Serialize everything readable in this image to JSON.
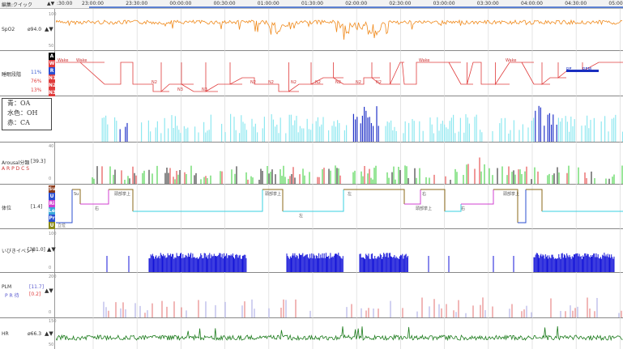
{
  "header": {
    "title": "編集:クイック",
    "arrows": "▲▼",
    "timeline_prefix": ":30:00",
    "times": [
      "23:00:00",
      "23:30:00",
      "00:00:00",
      "00:30:00",
      "01:00:00",
      "01:30:00",
      "02:00:00",
      "02:30:00",
      "03:00:00",
      "03:30:00",
      "04:00:00",
      "04:30:00",
      "05:00:00"
    ]
  },
  "rows": {
    "spo2": {
      "name": "SpO2",
      "value": "ø94.0",
      "arrows": "▲▼",
      "scale_top": "100",
      "scale_bottom": "50",
      "color": "#f08a1c"
    },
    "sleep": {
      "name": "睡眠段階",
      "pct1": "11%",
      "pct2": "76%",
      "pct3": "13%",
      "stages": [
        "A",
        "W",
        "R",
        "N1",
        "N2",
        "N3"
      ],
      "labels": [
        "Wake",
        "Wake",
        "N2",
        "N3",
        "N3",
        "N2",
        "N2",
        "N2",
        "N2",
        "N2",
        "N2",
        "N2",
        "Wake",
        "Wake",
        "RE",
        "REM"
      ],
      "color": "#e03c3c"
    },
    "apnea": {
      "legend1": "青：OA",
      "legend2": "水色：OH",
      "legend3": "赤：CA"
    },
    "arousal": {
      "name": "Arousal分類",
      "value": "[39.3]",
      "codes": "A R P D C S",
      "scale_top": "40",
      "scale_bottom": "0"
    },
    "position": {
      "name": "体位",
      "value": "[1.4]",
      "states": [
        "Su",
        "U",
        "Ri",
        "Le",
        "Pr",
        "U"
      ],
      "labels": [
        "Su",
        "右",
        "頭部挙上",
        "頭部挙上",
        "左",
        "左",
        "頭部挙上",
        "右",
        "右",
        "頭部挙上",
        "立位"
      ]
    },
    "snore": {
      "name": "いびきイベント",
      "value": "[381.0]",
      "arrows": "▲▼",
      "scale_top": "100",
      "scale_bottom": "0"
    },
    "plm": {
      "name": "PLM",
      "sub": "P R 待",
      "value1": "[11.7]",
      "value2": "[0.2]",
      "arrows": "▲▼",
      "scale_top": "200",
      "scale_bottom": "0"
    },
    "hr": {
      "name": "HR",
      "value": "ø66.3",
      "arrows": "▲▼",
      "scale_top": "150",
      "scale_bottom": "50",
      "color": "#1a7a1a"
    }
  }
}
